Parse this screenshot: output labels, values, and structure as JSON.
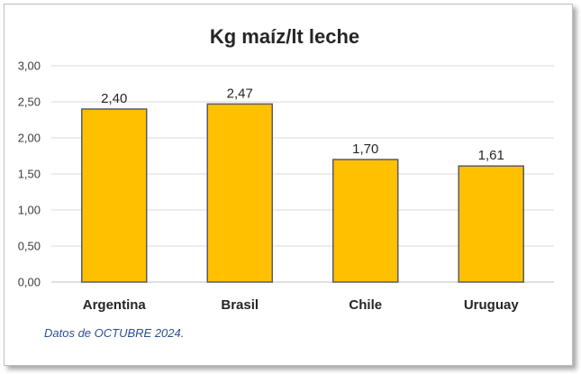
{
  "chart_data": {
    "type": "bar",
    "title": "Kg maíz/lt leche",
    "categories": [
      "Argentina",
      "Brasil",
      "Chile",
      "Uruguay"
    ],
    "values": [
      2.4,
      2.47,
      1.7,
      1.61
    ],
    "data_labels": [
      "2,40",
      "2,47",
      "1,70",
      "1,61"
    ],
    "ylim": [
      0,
      3
    ],
    "yticks": [
      "0,00",
      "0,50",
      "1,00",
      "1,50",
      "2,00",
      "2,50",
      "3,00"
    ],
    "grid": true,
    "legend": "none",
    "bar_color": "#FFC000",
    "bar_edge_color": "#5a5a6e",
    "footnote": "Datos de OCTUBRE 2024."
  }
}
